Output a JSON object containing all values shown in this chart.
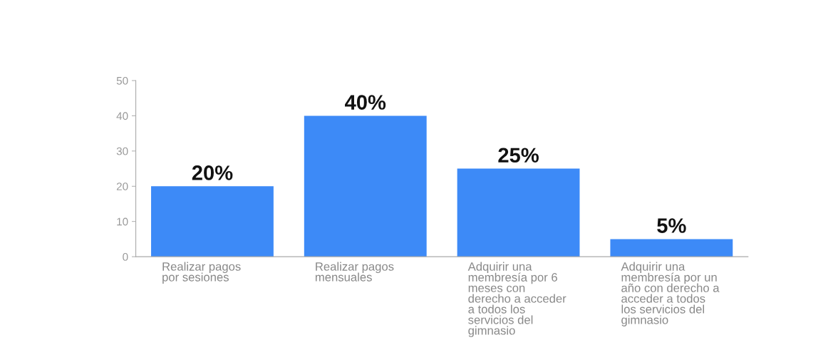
{
  "chart_data": {
    "type": "bar",
    "categories": [
      "Realizar pagos\npor sesiones",
      "Realizar pagos\nmensuales",
      "Adquirir una\nmembresía por 6\nmeses con\nderecho a acceder\na todos los\nservicios del\ngimnasio",
      "Adquirir una\nmembresía por un\naño con derecho a\nacceder a todos\nlos servicios del\ngimnasio"
    ],
    "values": [
      20,
      40,
      25,
      5
    ],
    "value_labels": [
      "20%",
      "40%",
      "25%",
      "5%"
    ],
    "color": "#3d8af7",
    "ylim": [
      0,
      50
    ],
    "yticks": [
      0,
      10,
      20,
      30,
      40,
      50
    ],
    "grid": false,
    "legend": false
  }
}
